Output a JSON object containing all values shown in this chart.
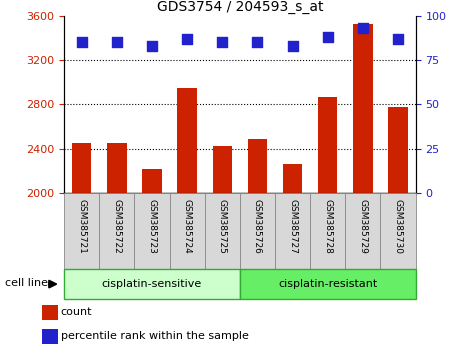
{
  "title": "GDS3754 / 204593_s_at",
  "samples": [
    "GSM385721",
    "GSM385722",
    "GSM385723",
    "GSM385724",
    "GSM385725",
    "GSM385726",
    "GSM385727",
    "GSM385728",
    "GSM385729",
    "GSM385730"
  ],
  "counts": [
    2450,
    2450,
    2220,
    2950,
    2420,
    2490,
    2260,
    2870,
    3530,
    2780
  ],
  "percentile_ranks": [
    85,
    85,
    83,
    87,
    85,
    85,
    83,
    88,
    93,
    87
  ],
  "ylim_left": [
    2000,
    3600
  ],
  "ylim_right": [
    0,
    100
  ],
  "yticks_left": [
    2000,
    2400,
    2800,
    3200,
    3600
  ],
  "yticks_right": [
    0,
    25,
    50,
    75,
    100
  ],
  "bar_color": "#cc2200",
  "scatter_color": "#2222cc",
  "grid_color": "#000000",
  "group_labels": [
    "cisplatin-sensitive",
    "cisplatin-resistant"
  ],
  "group_colors": [
    "#ccffcc",
    "#66ee66"
  ],
  "cell_line_label": "cell line",
  "legend_count": "count",
  "legend_pct": "percentile rank within the sample",
  "xlabel_color": "#cc2200",
  "ylabel_right_color": "#2222cc",
  "bar_width": 0.55,
  "scatter_size": 55,
  "label_box_color": "#d8d8d8",
  "label_box_edge": "#888888"
}
